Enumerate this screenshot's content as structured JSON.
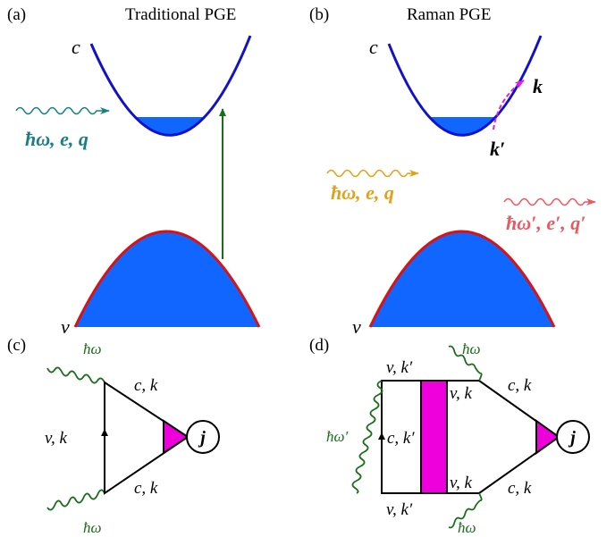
{
  "panels": {
    "a": {
      "label": "(a)",
      "title": "Traditional PGE"
    },
    "b": {
      "label": "(b)",
      "title": "Raman PGE"
    },
    "c": {
      "label": "(c)"
    },
    "d": {
      "label": "(d)"
    }
  },
  "bands": {
    "conduction": "c",
    "valence": "v"
  },
  "photons": {
    "a_incident": "ħω, e, q",
    "b_incident": "ħω, e, q",
    "b_scattered": "ħω′, e′, q′"
  },
  "momenta": {
    "k": "k",
    "k_prime": "k′"
  },
  "diagram_c": {
    "photon_top": "ħω",
    "photon_bottom": "ħω",
    "left_edge": "v, k",
    "top_edge": "c, k",
    "bottom_edge": "c, k",
    "vertex": "j"
  },
  "diagram_d": {
    "photon_top": "ħω",
    "photon_bottom": "ħω",
    "photon_left": "ħω′",
    "top_left": "v, k′",
    "bottom_left": "v, k′",
    "left_inner": "c, k′",
    "top_inner": "v, k",
    "bottom_inner": "v, k",
    "top_right": "c, k",
    "bottom_right": "c, k",
    "vertex": "j"
  },
  "colors": {
    "band_fill": "#1166ff",
    "conduction_line": "#1111cc",
    "valence_line": "#dd1111",
    "photon_teal": "#1a7f7f",
    "photon_gold": "#e0a21a",
    "photon_pink": "#e85a62",
    "transition_green": "#1a6e1a",
    "scatter_magenta": "#e020e0",
    "vertex_fill": "#ee00dd"
  }
}
